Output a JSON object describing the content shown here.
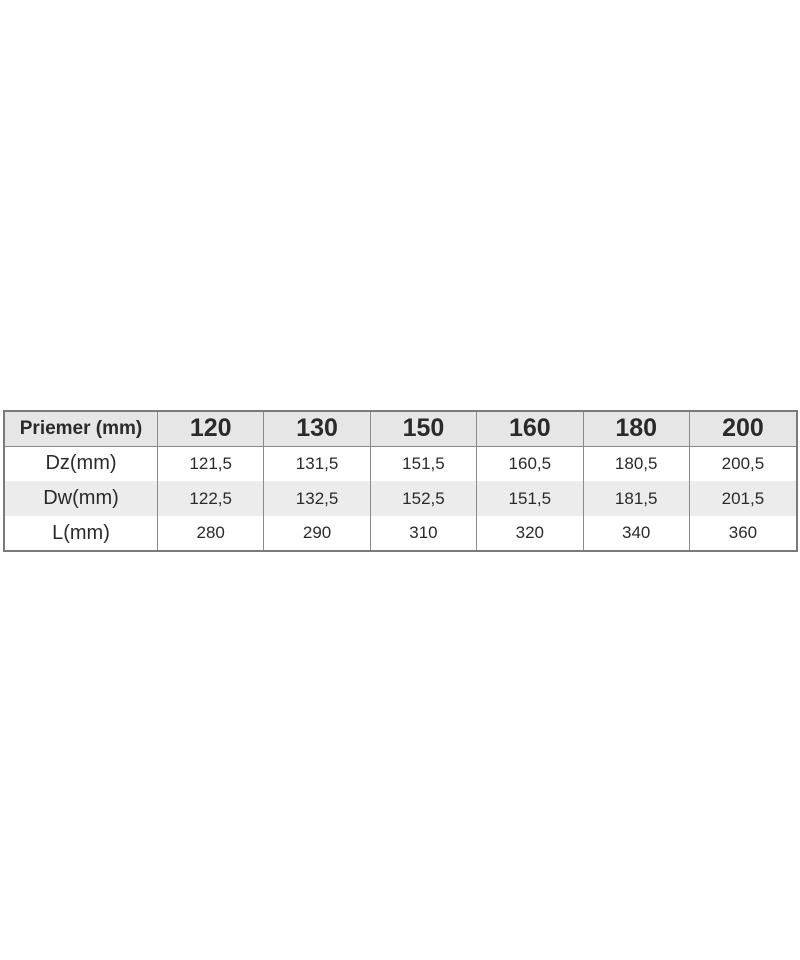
{
  "table": {
    "header": [
      "Priemer (mm)",
      "120",
      "130",
      "150",
      "160",
      "180",
      "200"
    ],
    "rows": [
      {
        "label": "Dz(mm)",
        "values": [
          "121,5",
          "131,5",
          "151,5",
          "160,5",
          "180,5",
          "200,5"
        ]
      },
      {
        "label": "Dw(mm)",
        "values": [
          "122,5",
          "132,5",
          "152,5",
          "151,5",
          "181,5",
          "201,5"
        ]
      },
      {
        "label": "L(mm)",
        "values": [
          "280",
          "290",
          "310",
          "320",
          "340",
          "360"
        ]
      }
    ]
  }
}
